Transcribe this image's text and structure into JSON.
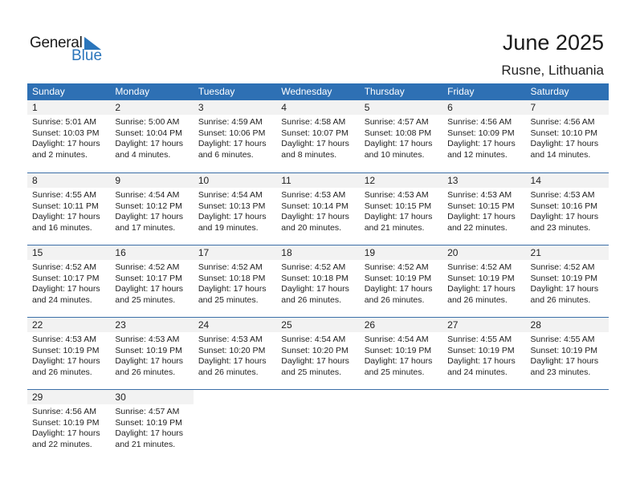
{
  "logo": {
    "line1": "General",
    "line2": "Blue",
    "color": "#2a75bb"
  },
  "header": {
    "title": "June 2025",
    "location": "Rusne, Lithuania"
  },
  "colors": {
    "header_bg": "#2e70b4",
    "daynum_bg": "#f2f2f2"
  },
  "weekdays": [
    "Sunday",
    "Monday",
    "Tuesday",
    "Wednesday",
    "Thursday",
    "Friday",
    "Saturday"
  ],
  "weeks": [
    [
      {
        "day": "1",
        "sunrise": "Sunrise: 5:01 AM",
        "sunset": "Sunset: 10:03 PM",
        "daylight1": "Daylight: 17 hours",
        "daylight2": "and 2 minutes."
      },
      {
        "day": "2",
        "sunrise": "Sunrise: 5:00 AM",
        "sunset": "Sunset: 10:04 PM",
        "daylight1": "Daylight: 17 hours",
        "daylight2": "and 4 minutes."
      },
      {
        "day": "3",
        "sunrise": "Sunrise: 4:59 AM",
        "sunset": "Sunset: 10:06 PM",
        "daylight1": "Daylight: 17 hours",
        "daylight2": "and 6 minutes."
      },
      {
        "day": "4",
        "sunrise": "Sunrise: 4:58 AM",
        "sunset": "Sunset: 10:07 PM",
        "daylight1": "Daylight: 17 hours",
        "daylight2": "and 8 minutes."
      },
      {
        "day": "5",
        "sunrise": "Sunrise: 4:57 AM",
        "sunset": "Sunset: 10:08 PM",
        "daylight1": "Daylight: 17 hours",
        "daylight2": "and 10 minutes."
      },
      {
        "day": "6",
        "sunrise": "Sunrise: 4:56 AM",
        "sunset": "Sunset: 10:09 PM",
        "daylight1": "Daylight: 17 hours",
        "daylight2": "and 12 minutes."
      },
      {
        "day": "7",
        "sunrise": "Sunrise: 4:56 AM",
        "sunset": "Sunset: 10:10 PM",
        "daylight1": "Daylight: 17 hours",
        "daylight2": "and 14 minutes."
      }
    ],
    [
      {
        "day": "8",
        "sunrise": "Sunrise: 4:55 AM",
        "sunset": "Sunset: 10:11 PM",
        "daylight1": "Daylight: 17 hours",
        "daylight2": "and 16 minutes."
      },
      {
        "day": "9",
        "sunrise": "Sunrise: 4:54 AM",
        "sunset": "Sunset: 10:12 PM",
        "daylight1": "Daylight: 17 hours",
        "daylight2": "and 17 minutes."
      },
      {
        "day": "10",
        "sunrise": "Sunrise: 4:54 AM",
        "sunset": "Sunset: 10:13 PM",
        "daylight1": "Daylight: 17 hours",
        "daylight2": "and 19 minutes."
      },
      {
        "day": "11",
        "sunrise": "Sunrise: 4:53 AM",
        "sunset": "Sunset: 10:14 PM",
        "daylight1": "Daylight: 17 hours",
        "daylight2": "and 20 minutes."
      },
      {
        "day": "12",
        "sunrise": "Sunrise: 4:53 AM",
        "sunset": "Sunset: 10:15 PM",
        "daylight1": "Daylight: 17 hours",
        "daylight2": "and 21 minutes."
      },
      {
        "day": "13",
        "sunrise": "Sunrise: 4:53 AM",
        "sunset": "Sunset: 10:15 PM",
        "daylight1": "Daylight: 17 hours",
        "daylight2": "and 22 minutes."
      },
      {
        "day": "14",
        "sunrise": "Sunrise: 4:53 AM",
        "sunset": "Sunset: 10:16 PM",
        "daylight1": "Daylight: 17 hours",
        "daylight2": "and 23 minutes."
      }
    ],
    [
      {
        "day": "15",
        "sunrise": "Sunrise: 4:52 AM",
        "sunset": "Sunset: 10:17 PM",
        "daylight1": "Daylight: 17 hours",
        "daylight2": "and 24 minutes."
      },
      {
        "day": "16",
        "sunrise": "Sunrise: 4:52 AM",
        "sunset": "Sunset: 10:17 PM",
        "daylight1": "Daylight: 17 hours",
        "daylight2": "and 25 minutes."
      },
      {
        "day": "17",
        "sunrise": "Sunrise: 4:52 AM",
        "sunset": "Sunset: 10:18 PM",
        "daylight1": "Daylight: 17 hours",
        "daylight2": "and 25 minutes."
      },
      {
        "day": "18",
        "sunrise": "Sunrise: 4:52 AM",
        "sunset": "Sunset: 10:18 PM",
        "daylight1": "Daylight: 17 hours",
        "daylight2": "and 26 minutes."
      },
      {
        "day": "19",
        "sunrise": "Sunrise: 4:52 AM",
        "sunset": "Sunset: 10:19 PM",
        "daylight1": "Daylight: 17 hours",
        "daylight2": "and 26 minutes."
      },
      {
        "day": "20",
        "sunrise": "Sunrise: 4:52 AM",
        "sunset": "Sunset: 10:19 PM",
        "daylight1": "Daylight: 17 hours",
        "daylight2": "and 26 minutes."
      },
      {
        "day": "21",
        "sunrise": "Sunrise: 4:52 AM",
        "sunset": "Sunset: 10:19 PM",
        "daylight1": "Daylight: 17 hours",
        "daylight2": "and 26 minutes."
      }
    ],
    [
      {
        "day": "22",
        "sunrise": "Sunrise: 4:53 AM",
        "sunset": "Sunset: 10:19 PM",
        "daylight1": "Daylight: 17 hours",
        "daylight2": "and 26 minutes."
      },
      {
        "day": "23",
        "sunrise": "Sunrise: 4:53 AM",
        "sunset": "Sunset: 10:19 PM",
        "daylight1": "Daylight: 17 hours",
        "daylight2": "and 26 minutes."
      },
      {
        "day": "24",
        "sunrise": "Sunrise: 4:53 AM",
        "sunset": "Sunset: 10:20 PM",
        "daylight1": "Daylight: 17 hours",
        "daylight2": "and 26 minutes."
      },
      {
        "day": "25",
        "sunrise": "Sunrise: 4:54 AM",
        "sunset": "Sunset: 10:20 PM",
        "daylight1": "Daylight: 17 hours",
        "daylight2": "and 25 minutes."
      },
      {
        "day": "26",
        "sunrise": "Sunrise: 4:54 AM",
        "sunset": "Sunset: 10:19 PM",
        "daylight1": "Daylight: 17 hours",
        "daylight2": "and 25 minutes."
      },
      {
        "day": "27",
        "sunrise": "Sunrise: 4:55 AM",
        "sunset": "Sunset: 10:19 PM",
        "daylight1": "Daylight: 17 hours",
        "daylight2": "and 24 minutes."
      },
      {
        "day": "28",
        "sunrise": "Sunrise: 4:55 AM",
        "sunset": "Sunset: 10:19 PM",
        "daylight1": "Daylight: 17 hours",
        "daylight2": "and 23 minutes."
      }
    ],
    [
      {
        "day": "29",
        "sunrise": "Sunrise: 4:56 AM",
        "sunset": "Sunset: 10:19 PM",
        "daylight1": "Daylight: 17 hours",
        "daylight2": "and 22 minutes."
      },
      {
        "day": "30",
        "sunrise": "Sunrise: 4:57 AM",
        "sunset": "Sunset: 10:19 PM",
        "daylight1": "Daylight: 17 hours",
        "daylight2": "and 21 minutes."
      },
      null,
      null,
      null,
      null,
      null
    ]
  ]
}
